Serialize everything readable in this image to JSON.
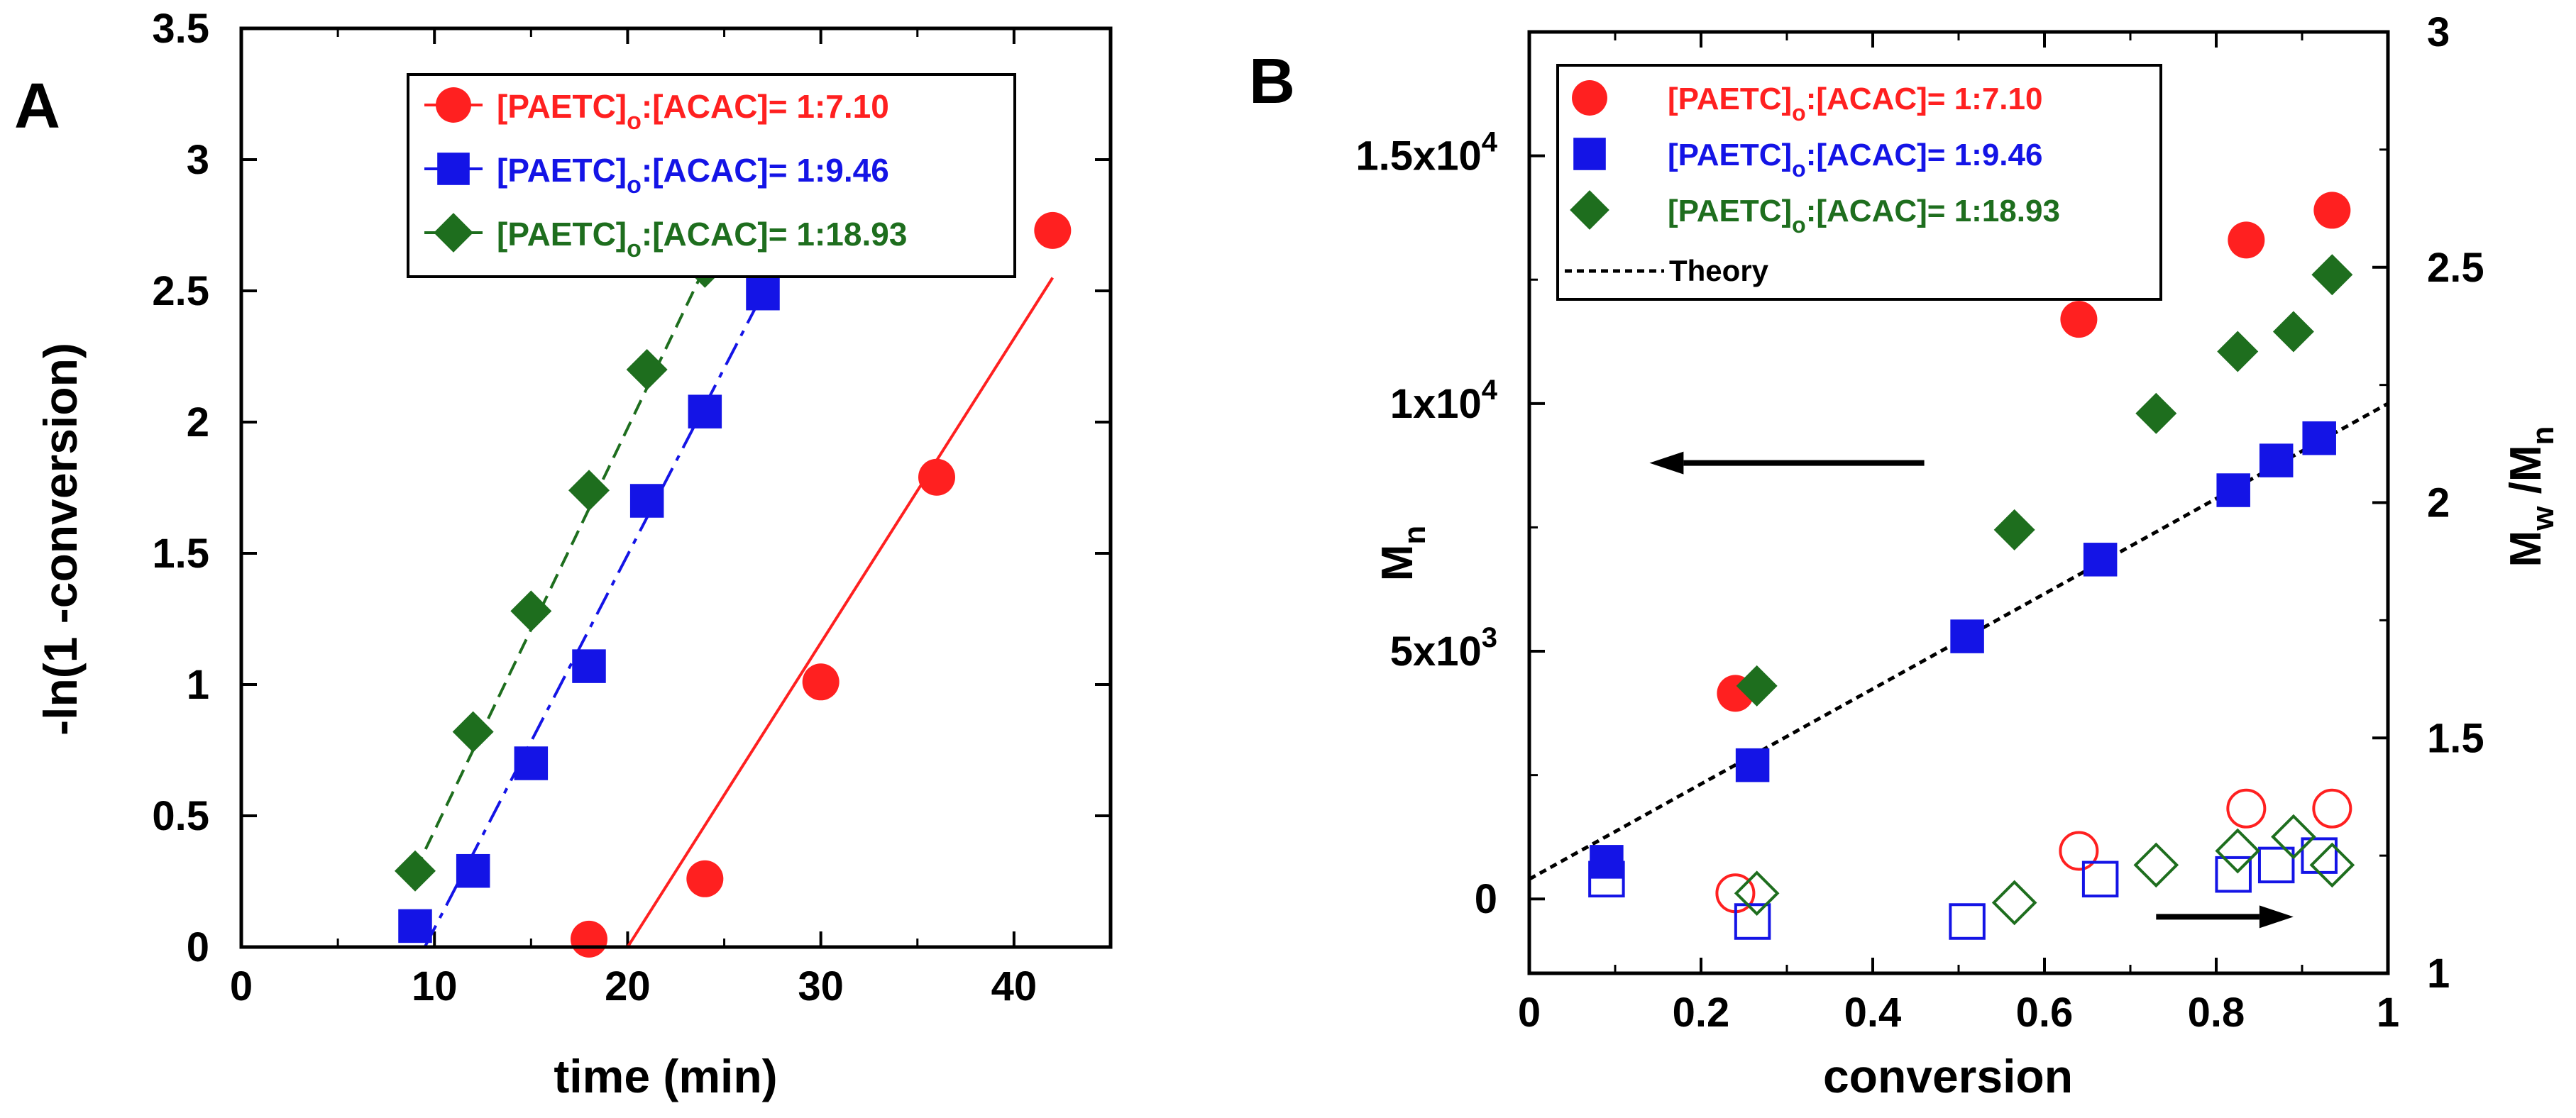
{
  "colors": {
    "red": "#ff2020",
    "blue": "#1414e6",
    "green": "#1e6e1e",
    "axis": "#000000"
  },
  "panel_labels": {
    "a": "A",
    "b": "B"
  },
  "legend_a": {
    "items": [
      {
        "prefix": "[PAETC]",
        "sub": "o",
        "suffix": ":[ACAC]= 1:7.10",
        "color": "#ff2020",
        "marker": "circle"
      },
      {
        "prefix": "[PAETC]",
        "sub": "o",
        "suffix": ":[ACAC]= 1:9.46",
        "color": "#1414e6",
        "marker": "square"
      },
      {
        "prefix": "[PAETC]",
        "sub": "o",
        "suffix": ":[ACAC]= 1:18.93",
        "color": "#1e6e1e",
        "marker": "diamond"
      }
    ]
  },
  "legend_b": {
    "items": [
      {
        "prefix": "[PAETC]",
        "sub": "o",
        "suffix": ":[ACAC]= 1:7.10",
        "color": "#ff2020",
        "marker": "circle"
      },
      {
        "prefix": "[PAETC]",
        "sub": "o",
        "suffix": ":[ACAC]= 1:9.46",
        "color": "#1414e6",
        "marker": "square"
      },
      {
        "prefix": "[PAETC]",
        "sub": "o",
        "suffix": ":[ACAC]= 1:18.93",
        "color": "#1e6e1e",
        "marker": "diamond"
      }
    ],
    "theory_label": "Theory"
  },
  "chart_data": [
    {
      "id": "A",
      "type": "scatter",
      "xlabel": "time (min)",
      "ylabel": "-ln(1 -conversion)",
      "xlim": [
        0,
        45
      ],
      "ylim": [
        0,
        3.5
      ],
      "xticks": [
        "0",
        "10",
        "20",
        "30",
        "40"
      ],
      "xtick_values": [
        0,
        10,
        20,
        30,
        40
      ],
      "yticks": [
        "0",
        "0.5",
        "1",
        "1.5",
        "2",
        "2.5",
        "3",
        "3.5"
      ],
      "ytick_values": [
        0,
        0.5,
        1,
        1.5,
        2,
        2.5,
        3,
        3.5
      ],
      "series": [
        {
          "name": "[PAETC]o:[ACAC]= 1:7.10",
          "color": "#ff2020",
          "marker": "circle",
          "x": [
            18,
            24,
            30,
            36,
            42
          ],
          "y": [
            0.03,
            0.26,
            1.01,
            1.79,
            2.73
          ],
          "fit": {
            "x": [
              20,
              42
            ],
            "y": [
              0,
              2.55
            ],
            "style": "solid"
          }
        },
        {
          "name": "[PAETC]o:[ACAC]= 1:9.46",
          "color": "#1414e6",
          "marker": "square",
          "x": [
            9,
            12,
            15,
            18,
            21,
            24,
            27
          ],
          "y": [
            0.08,
            0.29,
            0.7,
            1.07,
            1.7,
            2.04,
            2.49
          ],
          "fit": {
            "x": [
              9.5,
              27
            ],
            "y": [
              0,
              2.49
            ],
            "style": "dashdot"
          }
        },
        {
          "name": "[PAETC]o:[ACAC]= 1:18.93",
          "color": "#1e6e1e",
          "marker": "diamond",
          "x": [
            9,
            12,
            15,
            18,
            21,
            24
          ],
          "y": [
            0.29,
            0.82,
            1.28,
            1.74,
            2.2,
            2.59
          ],
          "fit": {
            "x": [
              9,
              24
            ],
            "y": [
              0.29,
              2.59
            ],
            "style": "dashed"
          }
        }
      ]
    },
    {
      "id": "B",
      "type": "scatter",
      "xlabel": "conversion",
      "ylabel": "M",
      "ylabel_sub": "n",
      "y2label_parts": [
        "M",
        "w",
        " /M",
        "n"
      ],
      "xlim": [
        0,
        1
      ],
      "ylim": [
        -1500,
        17500
      ],
      "y2lim": [
        1,
        3
      ],
      "xticks": [
        "0",
        "0.2",
        "0.4",
        "0.6",
        "0.8",
        "1"
      ],
      "xtick_values": [
        0,
        0.2,
        0.4,
        0.6,
        0.8,
        1
      ],
      "yticks": [
        {
          "value": 0,
          "base": "0",
          "exp": ""
        },
        {
          "value": 5000,
          "base": "5x10",
          "exp": "3"
        },
        {
          "value": 10000,
          "base": "1x10",
          "exp": "4"
        },
        {
          "value": 15000,
          "base": "1.5x10",
          "exp": "4"
        }
      ],
      "y2ticks": [
        "1",
        "1.5",
        "2",
        "2.5",
        "3"
      ],
      "y2tick_values": [
        1,
        1.5,
        2,
        2.5,
        3
      ],
      "series": [
        {
          "name": "[PAETC]o:[ACAC]= 1:7.10 Mn",
          "color": "#ff2020",
          "marker": "circle",
          "filled": true,
          "axis": "left",
          "x": [
            0.24,
            0.64,
            0.835,
            0.935
          ],
          "y": [
            4150,
            11700,
            13300,
            13900
          ]
        },
        {
          "name": "[PAETC]o:[ACAC]= 1:9.46 Mn",
          "color": "#1414e6",
          "marker": "square",
          "filled": true,
          "axis": "left",
          "x": [
            0.09,
            0.26,
            0.51,
            0.665,
            0.82,
            0.87,
            0.92
          ],
          "y": [
            750,
            2700,
            5300,
            6850,
            8250,
            8850,
            9300
          ]
        },
        {
          "name": "[PAETC]o:[ACAC]= 1:18.93 Mn",
          "color": "#1e6e1e",
          "marker": "diamond",
          "filled": true,
          "axis": "left",
          "x": [
            0.265,
            0.565,
            0.73,
            0.825,
            0.89,
            0.935
          ],
          "y": [
            4300,
            7450,
            9800,
            11050,
            11450,
            12600
          ]
        },
        {
          "name": "[PAETC]o:[ACAC]= 1:7.10 Mw/Mn",
          "color": "#ff2020",
          "marker": "circle",
          "filled": false,
          "axis": "right",
          "x": [
            0.24,
            0.64,
            0.835,
            0.935
          ],
          "y": [
            1.17,
            1.26,
            1.35,
            1.35
          ]
        },
        {
          "name": "[PAETC]o:[ACAC]= 1:9.46 Mw/Mn",
          "color": "#1414e6",
          "marker": "square",
          "filled": false,
          "axis": "right",
          "x": [
            0.09,
            0.26,
            0.51,
            0.665,
            0.82,
            0.87,
            0.92
          ],
          "y": [
            1.2,
            1.11,
            1.11,
            1.2,
            1.21,
            1.23,
            1.25
          ]
        },
        {
          "name": "[PAETC]o:[ACAC]= 1:18.93 Mw/Mn",
          "color": "#1e6e1e",
          "marker": "diamond",
          "filled": false,
          "axis": "right",
          "x": [
            0.265,
            0.565,
            0.73,
            0.825,
            0.89,
            0.935
          ],
          "y": [
            1.17,
            1.15,
            1.23,
            1.26,
            1.29,
            1.23
          ]
        }
      ],
      "theory": {
        "x": [
          0,
          1
        ],
        "y": [
          400,
          10000
        ],
        "style": "dotted"
      },
      "arrows": [
        {
          "direction": "left",
          "axis": "left",
          "x": [
            0.46,
            0.14
          ],
          "y": 8800
        },
        {
          "direction": "right",
          "axis": "right",
          "x": [
            0.73,
            0.89
          ],
          "y": 1.12
        }
      ]
    }
  ]
}
